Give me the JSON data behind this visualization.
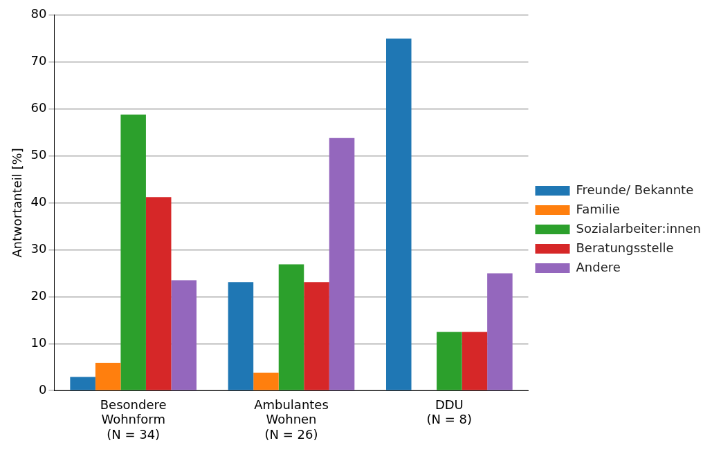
{
  "chart_data": {
    "type": "bar",
    "ylabel": "Antwortanteil [%]",
    "categories": [
      "Besondere\nWohnform\n(N = 34)",
      "Ambulantes\nWohnen\n(N = 26)",
      "DDU\n(N = 8)"
    ],
    "series": [
      {
        "name": "Freunde/ Bekannte",
        "color": "#1f77b4",
        "values": [
          2.9,
          23.1,
          75
        ]
      },
      {
        "name": "Familie",
        "color": "#ff7f0e",
        "values": [
          5.9,
          3.8,
          0
        ]
      },
      {
        "name": "Sozialarbeiter:innen",
        "color": "#2ca02c",
        "values": [
          58.8,
          26.9,
          12.5
        ]
      },
      {
        "name": "Beratungsstelle",
        "color": "#d62728",
        "values": [
          41.2,
          23.1,
          12.5
        ]
      },
      {
        "name": "Andere",
        "color": "#9467bd",
        "values": [
          23.5,
          53.8,
          25
        ]
      }
    ],
    "ylim": [
      0,
      80
    ],
    "yticks": [
      0,
      10,
      20,
      30,
      40,
      50,
      60,
      70,
      80
    ],
    "grid": "y",
    "legend": "right"
  }
}
